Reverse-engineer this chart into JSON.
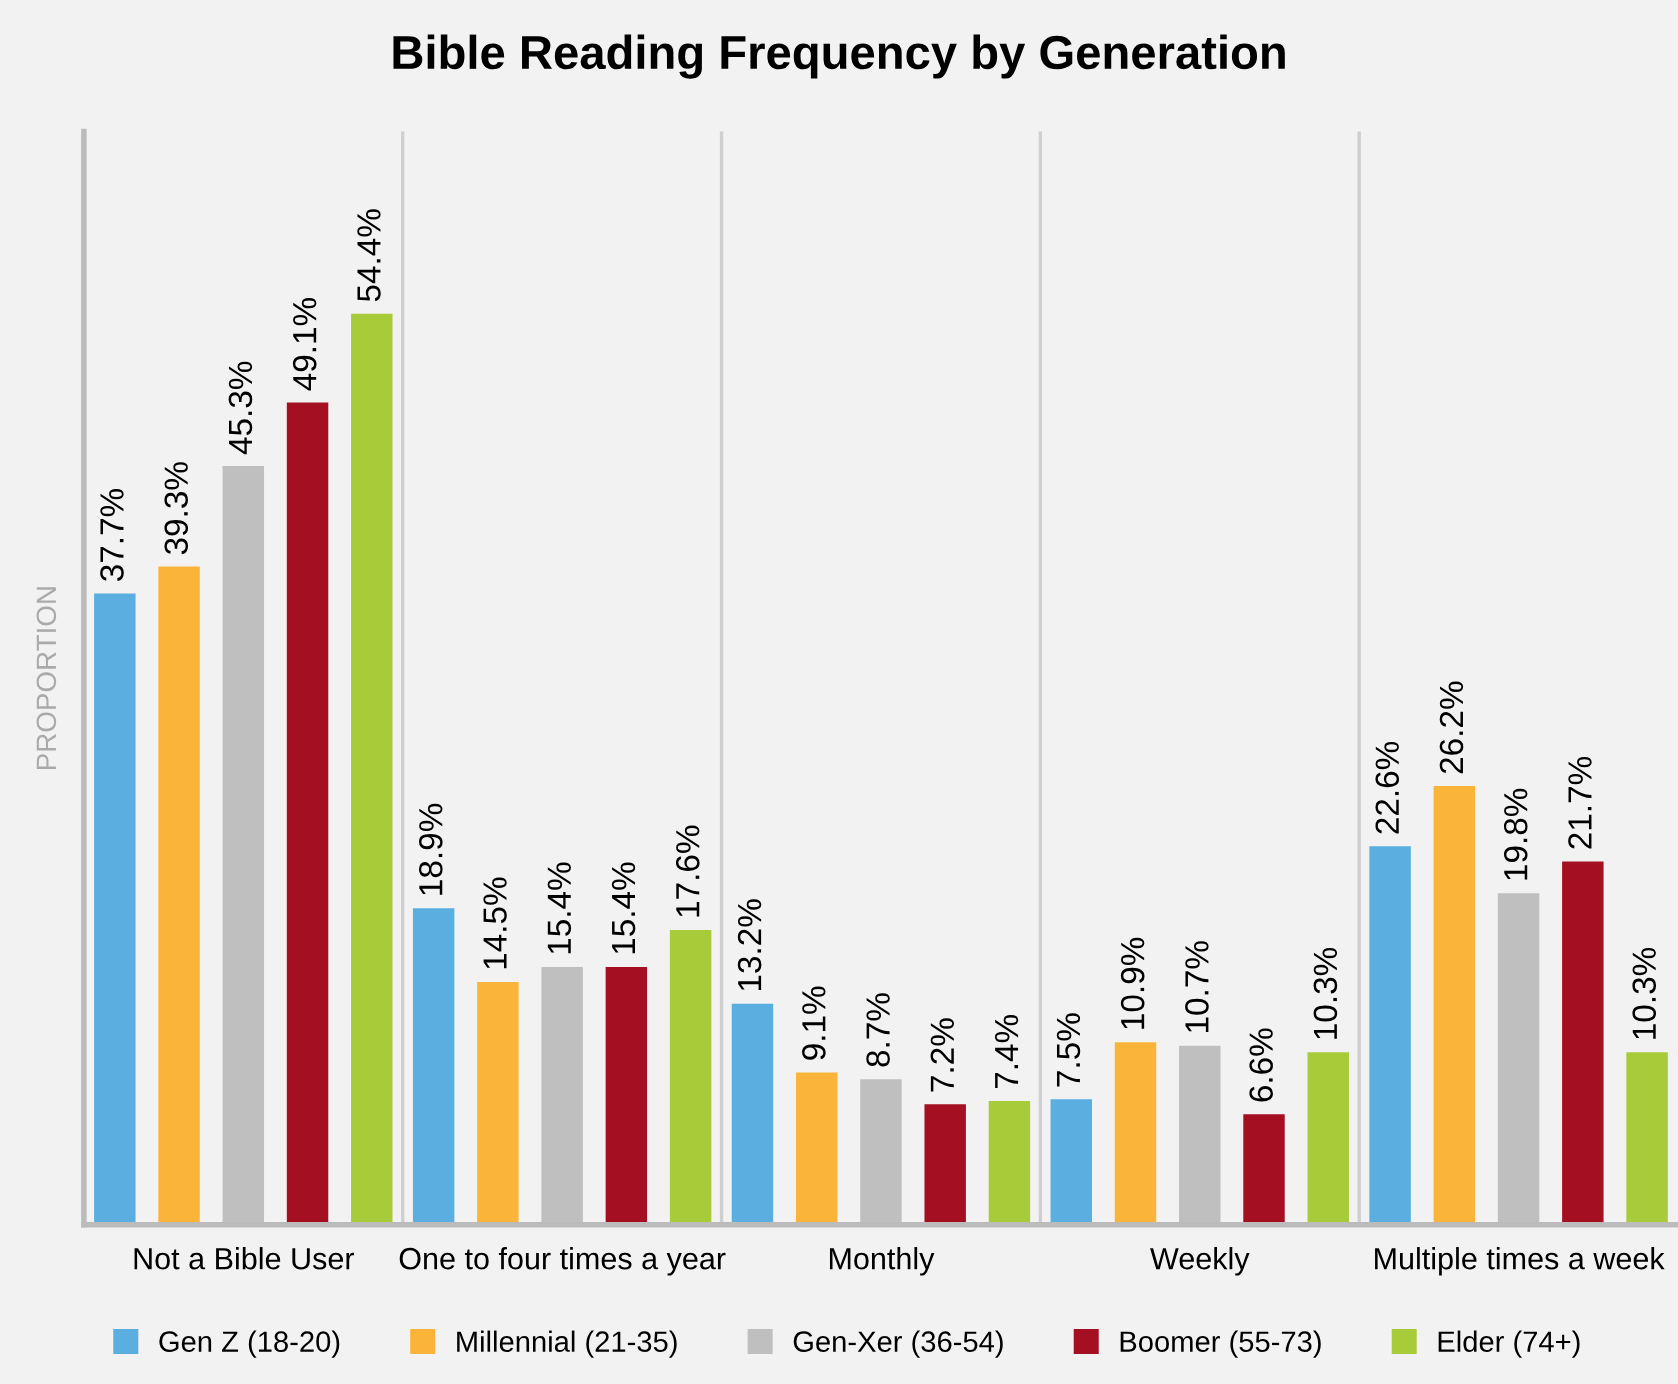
{
  "chart_data": {
    "type": "bar",
    "title": "Bible Reading Frequency by Generation",
    "ylabel": "PROPORTION",
    "categories": [
      "Not a Bible User",
      "One to four times a year",
      "Monthly",
      "Weekly",
      "Multiple times a week"
    ],
    "series": [
      {
        "name": "Gen Z (18-20)",
        "color": "#5aaee0",
        "values": [
          37.7,
          18.9,
          13.2,
          7.5,
          22.6
        ],
        "value_labels": [
          "37.7%",
          "18.9%",
          "13.2%",
          "7.5%",
          "22.6%"
        ]
      },
      {
        "name": "Millennial (21-35)",
        "color": "#fbb43a",
        "values": [
          39.3,
          14.5,
          9.1,
          10.9,
          26.2
        ],
        "value_labels": [
          "39.3%",
          "14.5%",
          "9.1%",
          "10.9%",
          "26.2%"
        ]
      },
      {
        "name": "Gen-Xer (36-54)",
        "color": "#bfbfbf",
        "values": [
          45.3,
          15.4,
          8.7,
          10.7,
          19.8
        ],
        "value_labels": [
          "45.3%",
          "15.4%",
          "8.7%",
          "10.7%",
          "19.8%"
        ]
      },
      {
        "name": "Boomer (55-73)",
        "color": "#a50f22",
        "values": [
          49.1,
          15.4,
          7.2,
          6.6,
          21.7
        ],
        "value_labels": [
          "49.1%",
          "15.4%",
          "7.2%",
          "6.6%",
          "21.7%"
        ]
      },
      {
        "name": "Elder (74+)",
        "color": "#a8cb39",
        "values": [
          54.4,
          17.6,
          7.4,
          10.3,
          10.3
        ],
        "value_labels": [
          "54.4%",
          "17.6%",
          "7.4%",
          "10.3%",
          "10.3%"
        ]
      }
    ],
    "grid": "x",
    "legend": "bottom",
    "tick_labels": "x"
  }
}
